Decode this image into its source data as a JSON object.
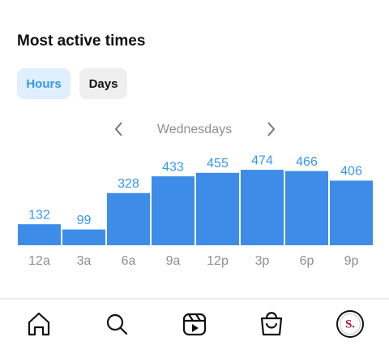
{
  "header": {
    "title": "Most active times"
  },
  "tabs": [
    "Hours",
    "Days"
  ],
  "day_nav": {
    "label": "Wednesdays"
  },
  "chart_data": {
    "type": "bar",
    "categories": [
      "12a",
      "3a",
      "6a",
      "9a",
      "12p",
      "3p",
      "6p",
      "9p"
    ],
    "values": [
      132,
      99,
      328,
      433,
      455,
      474,
      466,
      406
    ],
    "color": "#3d8ce8"
  },
  "tab_bar": {
    "profile_initial": "S."
  }
}
